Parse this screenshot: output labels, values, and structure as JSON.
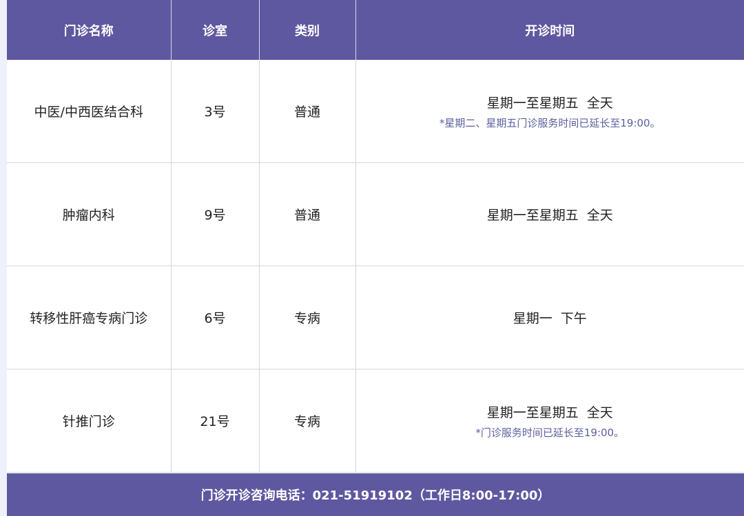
{
  "colors": {
    "header_bg": "#5e58a0",
    "note": "#5a5f9e"
  },
  "headers": [
    "门诊名称",
    "诊室",
    "类别",
    "开诊时间"
  ],
  "rows": [
    {
      "name": "中医/中西医结合科",
      "room": "3号",
      "type": "普通",
      "time": "星期一至星期五  全天",
      "note": "*星期二、星期五门诊服务时间已延长至19:00。"
    },
    {
      "name": "肿瘤内科",
      "room": "9号",
      "type": "普通",
      "time": "星期一至星期五  全天",
      "note": ""
    },
    {
      "name": "转移性肝癌专病门诊",
      "room": "6号",
      "type": "专病",
      "time": "星期一  下午",
      "note": ""
    },
    {
      "name": "针推门诊",
      "room": "21号",
      "type": "专病",
      "time": "星期一至星期五  全天",
      "note": "*门诊服务时间已延长至19:00。"
    }
  ],
  "footer": "门诊开诊咨询电话：021-51919102（工作日8:00-17:00）"
}
